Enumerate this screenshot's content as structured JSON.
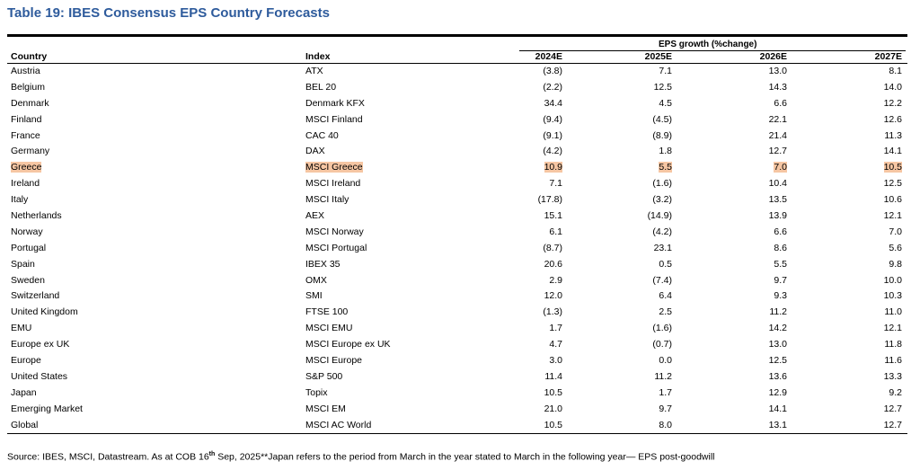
{
  "title": "Table 19: IBES Consensus EPS Country Forecasts",
  "group_header": "EPS growth (%change)",
  "columns": {
    "country": "Country",
    "index": "Index",
    "y2024": "2024E",
    "y2025": "2025E",
    "y2026": "2026E",
    "y2027": "2027E"
  },
  "rows": [
    {
      "country": "Austria",
      "index": "ATX",
      "y2024": "(3.8)",
      "y2025": "7.1",
      "y2026": "13.0",
      "y2027": "8.1"
    },
    {
      "country": "Belgium",
      "index": "BEL 20",
      "y2024": "(2.2)",
      "y2025": "12.5",
      "y2026": "14.3",
      "y2027": "14.0"
    },
    {
      "country": "Denmark",
      "index": "Denmark KFX",
      "y2024": "34.4",
      "y2025": "4.5",
      "y2026": "6.6",
      "y2027": "12.2"
    },
    {
      "country": "Finland",
      "index": "MSCI Finland",
      "y2024": "(9.4)",
      "y2025": "(4.5)",
      "y2026": "22.1",
      "y2027": "12.6"
    },
    {
      "country": "France",
      "index": "CAC 40",
      "y2024": "(9.1)",
      "y2025": "(8.9)",
      "y2026": "21.4",
      "y2027": "11.3"
    },
    {
      "country": "Germany",
      "index": "DAX",
      "y2024": "(4.2)",
      "y2025": "1.8",
      "y2026": "12.7",
      "y2027": "14.1"
    },
    {
      "country": "Greece",
      "index": "MSCI Greece",
      "y2024": "10.9",
      "y2025": "5.5",
      "y2026": "7.0",
      "y2027": "10.5"
    },
    {
      "country": "Ireland",
      "index": "MSCI Ireland",
      "y2024": "7.1",
      "y2025": "(1.6)",
      "y2026": "10.4",
      "y2027": "12.5"
    },
    {
      "country": "Italy",
      "index": "MSCI Italy",
      "y2024": "(17.8)",
      "y2025": "(3.2)",
      "y2026": "13.5",
      "y2027": "10.6"
    },
    {
      "country": "Netherlands",
      "index": "AEX",
      "y2024": "15.1",
      "y2025": "(14.9)",
      "y2026": "13.9",
      "y2027": "12.1"
    },
    {
      "country": "Norway",
      "index": "MSCI Norway",
      "y2024": "6.1",
      "y2025": "(4.2)",
      "y2026": "6.6",
      "y2027": "7.0"
    },
    {
      "country": "Portugal",
      "index": "MSCI Portugal",
      "y2024": "(8.7)",
      "y2025": "23.1",
      "y2026": "8.6",
      "y2027": "5.6"
    },
    {
      "country": "Spain",
      "index": "IBEX 35",
      "y2024": "20.6",
      "y2025": "0.5",
      "y2026": "5.5",
      "y2027": "9.8"
    },
    {
      "country": "Sweden",
      "index": "OMX",
      "y2024": "2.9",
      "y2025": "(7.4)",
      "y2026": "9.7",
      "y2027": "10.0"
    },
    {
      "country": "Switzerland",
      "index": "SMI",
      "y2024": "12.0",
      "y2025": "6.4",
      "y2026": "9.3",
      "y2027": "10.3"
    },
    {
      "country": "United Kingdom",
      "index": "FTSE 100",
      "y2024": "(1.3)",
      "y2025": "2.5",
      "y2026": "11.2",
      "y2027": "11.0"
    },
    {
      "country": "EMU",
      "index": "MSCI EMU",
      "y2024": "1.7",
      "y2025": "(1.6)",
      "y2026": "14.2",
      "y2027": "12.1"
    },
    {
      "country": "Europe ex UK",
      "index": "MSCI Europe ex UK",
      "y2024": "4.7",
      "y2025": "(0.7)",
      "y2026": "13.0",
      "y2027": "11.8"
    },
    {
      "country": "Europe",
      "index": "MSCI Europe",
      "y2024": "3.0",
      "y2025": "0.0",
      "y2026": "12.5",
      "y2027": "11.6"
    },
    {
      "country": "United States",
      "index": "S&P 500",
      "y2024": "11.4",
      "y2025": "11.2",
      "y2026": "13.6",
      "y2027": "13.3"
    },
    {
      "country": "Japan",
      "index": "Topix",
      "y2024": "10.5",
      "y2025": "1.7",
      "y2026": "12.9",
      "y2027": "9.2"
    },
    {
      "country": "Emerging Market",
      "index": "MSCI EM",
      "y2024": "21.0",
      "y2025": "9.7",
      "y2026": "14.1",
      "y2027": "12.7"
    },
    {
      "country": "Global",
      "index": "MSCI AC World",
      "y2024": "10.5",
      "y2025": "8.0",
      "y2026": "13.1",
      "y2027": "12.7"
    }
  ],
  "highlight_row_country": "Greece",
  "highlight_color": "#f6c6a3",
  "source": {
    "pre": "Source: IBES, MSCI, Datastream. As at COB 16",
    "sup": "th",
    "post": " Sep, 2025**Japan refers to the period from March in the year stated to March in the following year— EPS post-goodwill"
  }
}
